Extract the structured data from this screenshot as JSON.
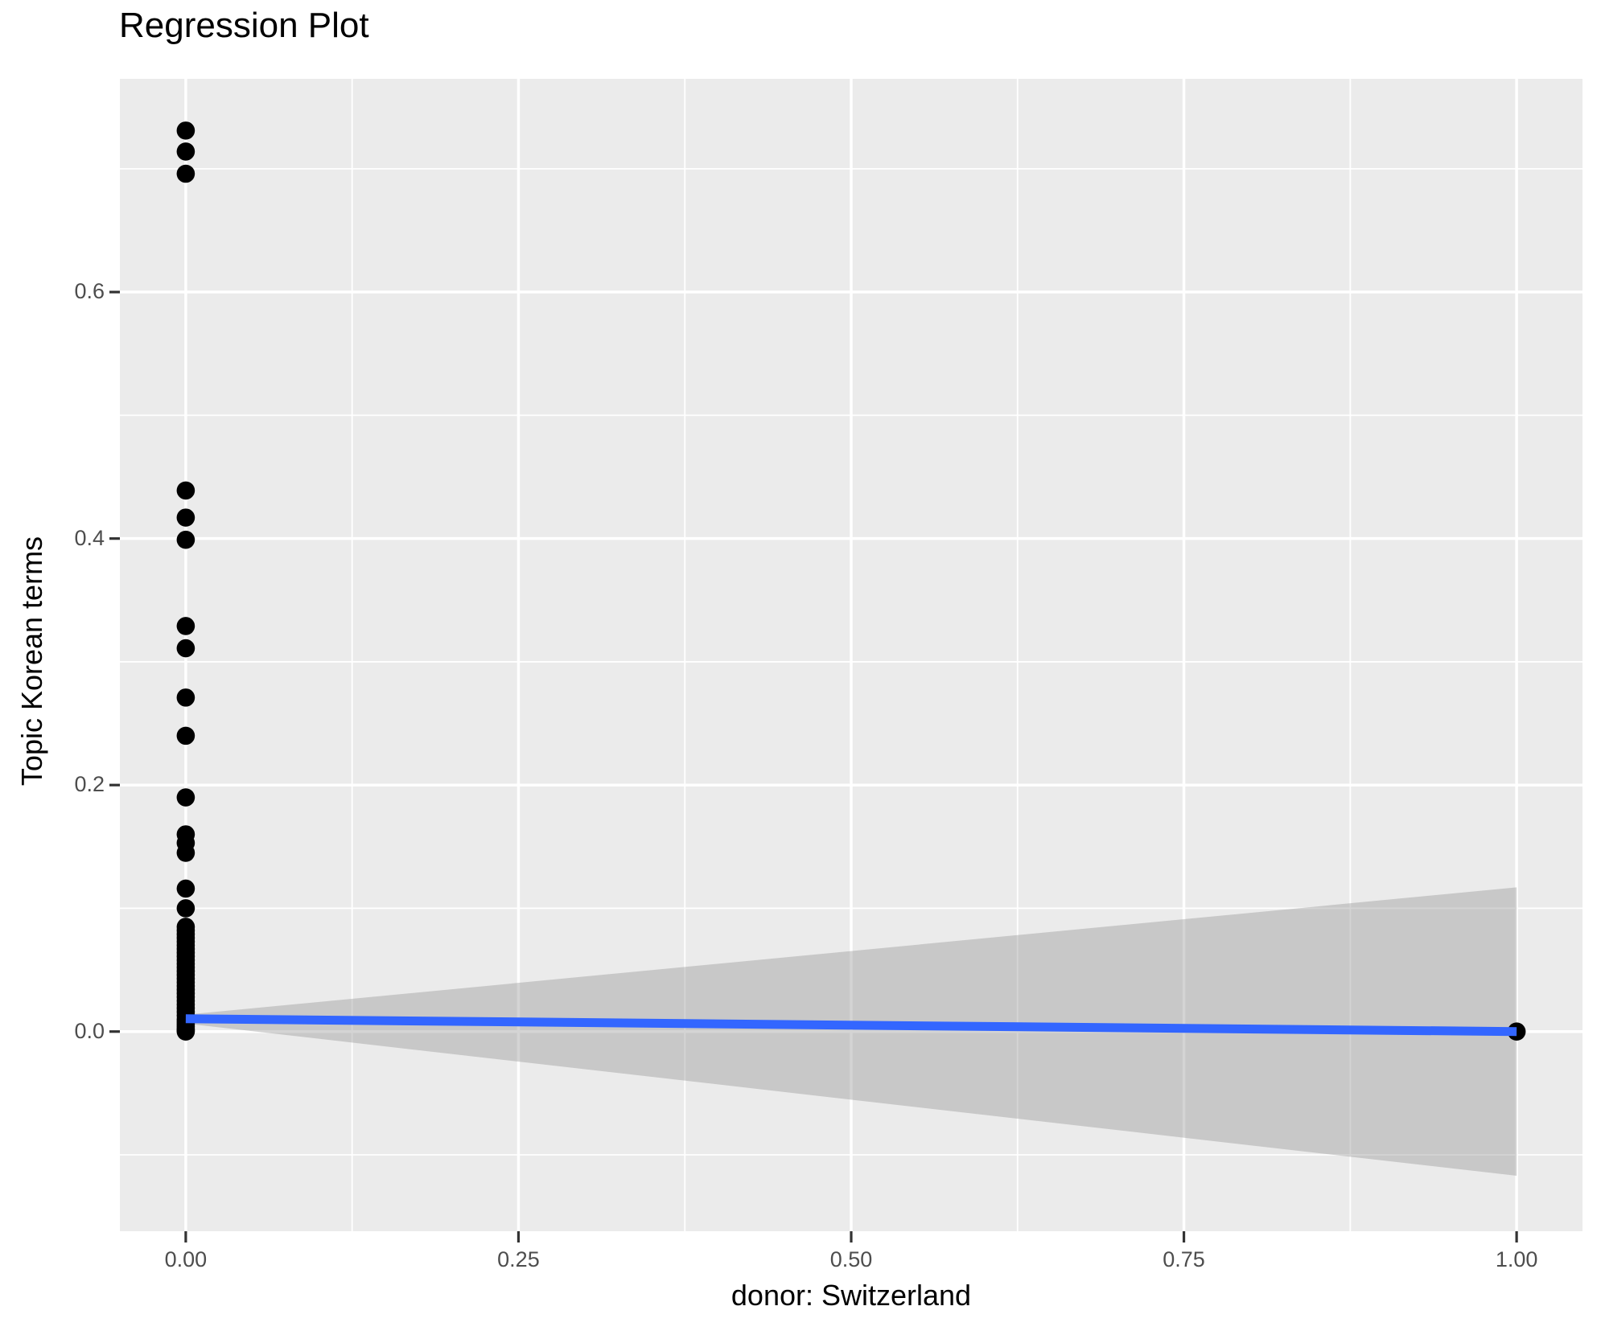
{
  "chart_data": {
    "type": "scatter",
    "title": "Regression Plot",
    "xlabel": "donor: Switzerland",
    "ylabel": "Topic Korean terms",
    "legend": "none",
    "grid": true,
    "xlim": [
      -0.0495,
      1.0495
    ],
    "ylim": [
      -0.162,
      0.773
    ],
    "x_ticks": {
      "values": [
        0,
        0.25,
        0.5,
        0.75,
        1.0
      ],
      "labels": [
        "0.00",
        "0.25",
        "0.50",
        "0.75",
        "1.00"
      ]
    },
    "x_minor_ticks": [
      0.125,
      0.375,
      0.625,
      0.875
    ],
    "y_ticks": {
      "values": [
        0.0,
        0.2,
        0.4,
        0.6
      ],
      "labels": [
        "0.0",
        "0.2",
        "0.4",
        "0.6"
      ]
    },
    "y_minor_ticks": [
      -0.1,
      0.1,
      0.3,
      0.5,
      0.7
    ],
    "points": [
      [
        0,
        0.731
      ],
      [
        0,
        0.714
      ],
      [
        0,
        0.696
      ],
      [
        0,
        0.439
      ],
      [
        0,
        0.417
      ],
      [
        0,
        0.399
      ],
      [
        0,
        0.329
      ],
      [
        0,
        0.311
      ],
      [
        0,
        0.271
      ],
      [
        0,
        0.24
      ],
      [
        0,
        0.19
      ],
      [
        0,
        0.16
      ],
      [
        0,
        0.153
      ],
      [
        0,
        0.145
      ],
      [
        0,
        0.116
      ],
      [
        0,
        0.1
      ],
      [
        0,
        0.085
      ],
      [
        0,
        0.082
      ],
      [
        0,
        0.079
      ],
      [
        0,
        0.076
      ],
      [
        0,
        0.073
      ],
      [
        0,
        0.07
      ],
      [
        0,
        0.067
      ],
      [
        0,
        0.064
      ],
      [
        0,
        0.061
      ],
      [
        0,
        0.058
      ],
      [
        0,
        0.055
      ],
      [
        0,
        0.052
      ],
      [
        0,
        0.049
      ],
      [
        0,
        0.046
      ],
      [
        0,
        0.043
      ],
      [
        0,
        0.04
      ],
      [
        0,
        0.037
      ],
      [
        0,
        0.034
      ],
      [
        0,
        0.031
      ],
      [
        0,
        0.028
      ],
      [
        0,
        0.025
      ],
      [
        0,
        0.022
      ],
      [
        0,
        0.019
      ],
      [
        0,
        0.016
      ],
      [
        0,
        0.013
      ],
      [
        0,
        0.01
      ],
      [
        0,
        0.008
      ],
      [
        0,
        0.006
      ],
      [
        0,
        0.004
      ],
      [
        0,
        0.002
      ],
      [
        0,
        0.001
      ],
      [
        0,
        0.0
      ],
      [
        1,
        0.0
      ]
    ],
    "regression_line": {
      "x": [
        0,
        1
      ],
      "y": [
        0.0104,
        0.0
      ]
    },
    "confidence_band": {
      "x": [
        0,
        1
      ],
      "upper": [
        0.0137,
        0.117
      ],
      "lower": [
        0.0065,
        -0.117
      ]
    },
    "colors": {
      "background": "#FFFFFF",
      "panel": "#EBEBEB",
      "grid": "#FFFFFF",
      "point": "#000000",
      "line": "#3366FF",
      "band": "#999999",
      "band_alpha": 0.42,
      "tick_mark": "#333333",
      "tick_text": "#4D4D4D",
      "text": "#000000"
    }
  }
}
